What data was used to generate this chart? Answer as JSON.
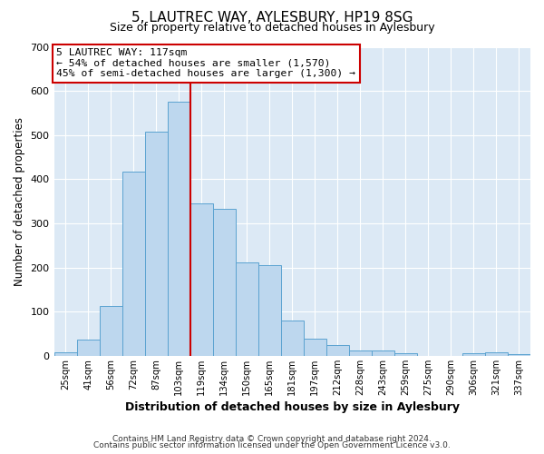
{
  "title": "5, LAUTREC WAY, AYLESBURY, HP19 8SG",
  "subtitle": "Size of property relative to detached houses in Aylesbury",
  "xlabel": "Distribution of detached houses by size in Aylesbury",
  "ylabel": "Number of detached properties",
  "bar_labels": [
    "25sqm",
    "41sqm",
    "56sqm",
    "72sqm",
    "87sqm",
    "103sqm",
    "119sqm",
    "134sqm",
    "150sqm",
    "165sqm",
    "181sqm",
    "197sqm",
    "212sqm",
    "228sqm",
    "243sqm",
    "259sqm",
    "275sqm",
    "290sqm",
    "306sqm",
    "321sqm",
    "337sqm"
  ],
  "bar_values": [
    8,
    37,
    112,
    417,
    508,
    575,
    345,
    333,
    211,
    205,
    80,
    39,
    25,
    12,
    13,
    5,
    0,
    0,
    6,
    7,
    3
  ],
  "bar_color": "#bdd7ee",
  "bar_edge_color": "#5ba3d0",
  "vline_x_index": 6,
  "vline_color": "#cc0000",
  "annotation_title": "5 LAUTREC WAY: 117sqm",
  "annotation_line1": "← 54% of detached houses are smaller (1,570)",
  "annotation_line2": "45% of semi-detached houses are larger (1,300) →",
  "annotation_box_color": "#ffffff",
  "annotation_box_edge": "#cc0000",
  "ylim": [
    0,
    700
  ],
  "yticks": [
    0,
    100,
    200,
    300,
    400,
    500,
    600,
    700
  ],
  "background_color": "#dce9f5",
  "footer1": "Contains HM Land Registry data © Crown copyright and database right 2024.",
  "footer2": "Contains public sector information licensed under the Open Government Licence v3.0."
}
